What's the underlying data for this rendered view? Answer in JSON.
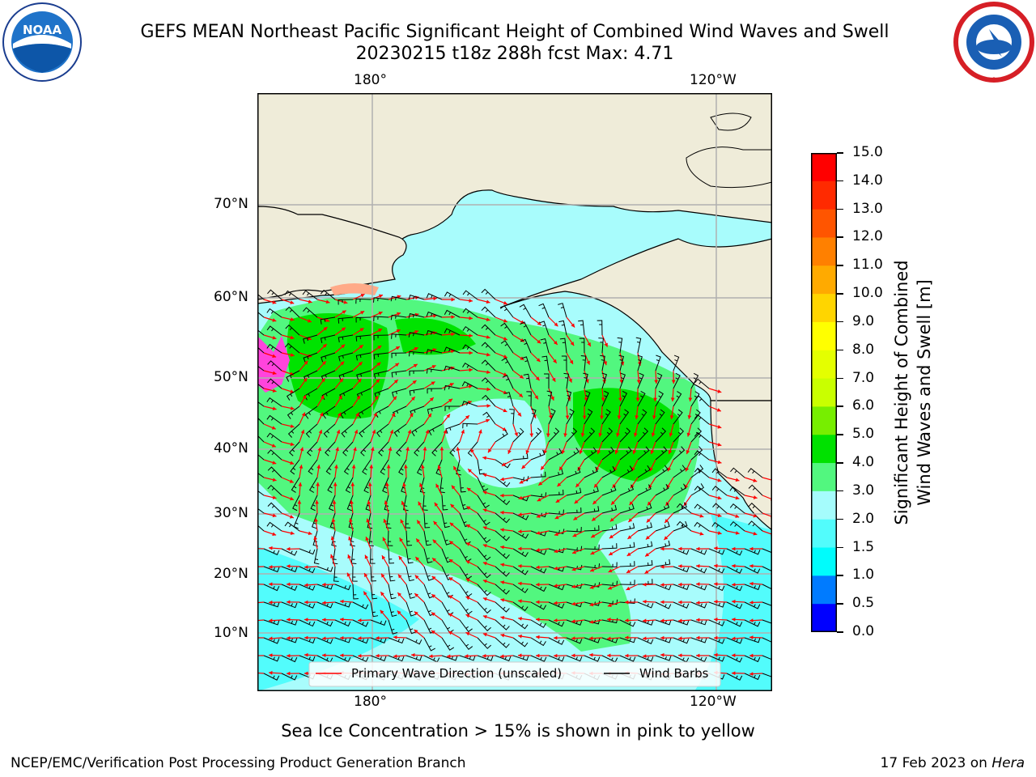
{
  "header": {
    "title_line1": "GEFS MEAN Northeast Pacific Significant Height of Combined Wind Waves and Swell",
    "title_line2": "20230215 t18z 288h fcst   Max: 4.71"
  },
  "logos": {
    "left": {
      "text": "NOAA",
      "icon": "noaa-logo-icon"
    },
    "right": {
      "icon": "nws-logo-icon"
    }
  },
  "map": {
    "lon_labels_top": [
      "180°",
      "120°W"
    ],
    "lon_labels_bottom": [
      "180°",
      "120°W"
    ],
    "lat_labels": [
      "70°N",
      "60°N",
      "50°N",
      "40°N",
      "30°N",
      "20°N",
      "10°N"
    ],
    "legend": {
      "wave_direction": "Primary Wave Direction (unscaled)",
      "wind_barbs": "Wind Barbs"
    },
    "colors": {
      "land": "#efecd9",
      "ocean_low": "#a8fcfc",
      "ocean_mid": "#52f77f",
      "ocean_high": "#00e300",
      "ice": "#ff44dd",
      "arrow": "#ff0000"
    }
  },
  "colorbar": {
    "label_line1": "Significant Height of Combined",
    "label_line2": "Wind Waves and Swell [m]",
    "ticks": [
      "15.0",
      "14.0",
      "13.0",
      "12.0",
      "11.0",
      "10.0",
      "9.0",
      "8.0",
      "7.0",
      "6.0",
      "5.0",
      "4.0",
      "3.0",
      "2.0",
      "1.5",
      "1.0",
      "0.5",
      "0.0"
    ],
    "colors": [
      "#ff0000",
      "#ff2a00",
      "#ff5500",
      "#ff8000",
      "#ffaa00",
      "#ffd500",
      "#ffff00",
      "#e4ff00",
      "#c9ff00",
      "#77ee00",
      "#00e100",
      "#52f77f",
      "#a5fcfc",
      "#52fcfc",
      "#00fcfc",
      "#007bff",
      "#0000ff"
    ]
  },
  "footer": {
    "note": "Sea Ice Concentration > 15% is shown in pink to yellow",
    "left": "NCEP/EMC/Verification Post Processing Product Generation Branch",
    "right_prefix": "17 Feb 2023 on ",
    "right_host": "Hera"
  }
}
